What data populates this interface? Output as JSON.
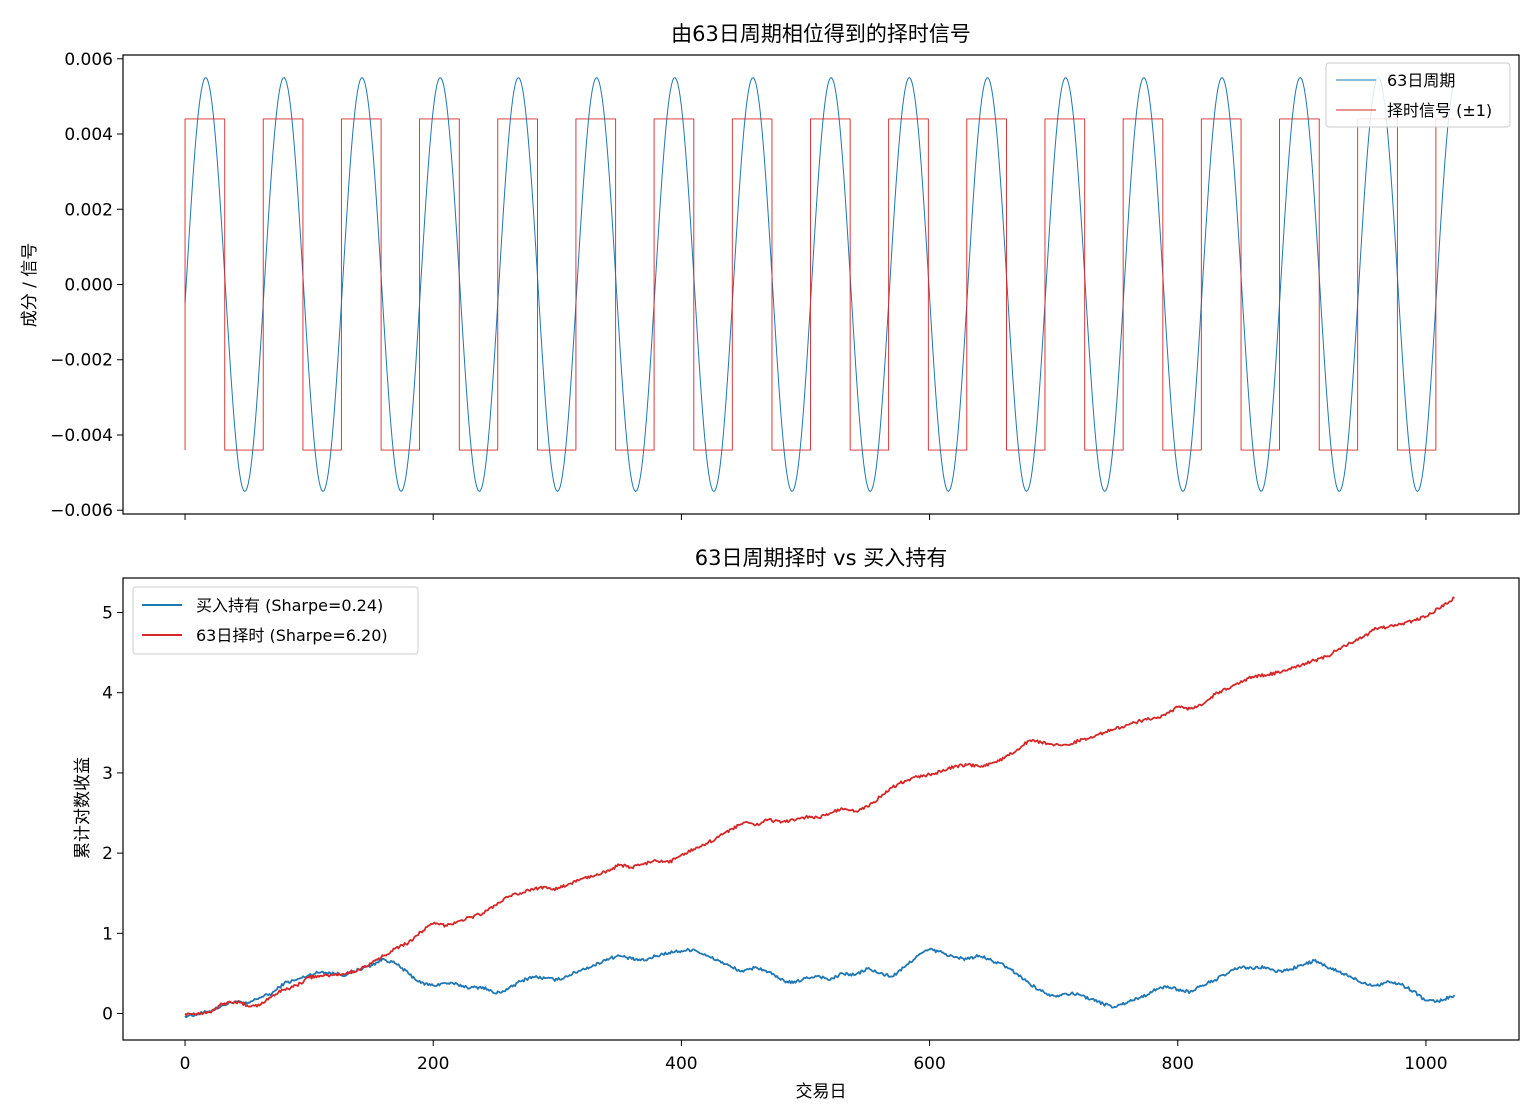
{
  "chart_data": [
    {
      "type": "line",
      "title": "由63日周期相位得到的择时信号",
      "xlabel": "",
      "ylabel": "成分 / 信号",
      "xlim": [
        -50,
        1075
      ],
      "ylim": [
        -0.0061,
        0.0061
      ],
      "xticks": [
        0,
        200,
        400,
        600,
        800,
        1000
      ],
      "show_xtick_labels": false,
      "yticks": [
        -0.006,
        -0.004,
        -0.002,
        0.0,
        0.002,
        0.004,
        0.006
      ],
      "ytick_labels": [
        "−0.006",
        "−0.004",
        "−0.002",
        "0.000",
        "0.002",
        "0.004",
        "0.006"
      ],
      "grid": false,
      "legend_position": "upper right",
      "series": [
        {
          "name": "63日周期",
          "color": "#1f77b4",
          "kind": "sine",
          "amplitude": 0.0055,
          "period": 63,
          "n": 1024,
          "start_value": -0.0005
        },
        {
          "name": "择时信号 (±1)",
          "color": "#d62728",
          "kind": "step",
          "level": 0.0044,
          "first_value": -0.0044,
          "switch_x": [
            0,
            32,
            63,
            95,
            126,
            158,
            189,
            221,
            252,
            284,
            315,
            347,
            378,
            410,
            441,
            473,
            504,
            536,
            567,
            599,
            630,
            662,
            693,
            725,
            756,
            788,
            819,
            851,
            882,
            914,
            945,
            977,
            1008
          ],
          "end_x": 1023
        }
      ]
    },
    {
      "type": "line",
      "title": "63日周期择时 vs 买入持有",
      "xlabel": "交易日",
      "ylabel": "累计对数收益",
      "xlim": [
        -50,
        1075
      ],
      "ylim": [
        -0.33,
        5.43
      ],
      "xticks": [
        0,
        200,
        400,
        600,
        800,
        1000
      ],
      "yticks": [
        0,
        1,
        2,
        3,
        4,
        5
      ],
      "grid": false,
      "legend_position": "upper left",
      "series": [
        {
          "name": "买入持有 (Sharpe=0.24)",
          "color": "#1f77b4",
          "x": [
            0,
            10,
            20,
            30,
            40,
            50,
            60,
            70,
            80,
            90,
            100,
            110,
            120,
            130,
            140,
            150,
            160,
            170,
            180,
            190,
            200,
            210,
            220,
            230,
            240,
            250,
            260,
            270,
            280,
            290,
            300,
            310,
            320,
            330,
            340,
            350,
            360,
            370,
            380,
            390,
            400,
            410,
            420,
            430,
            440,
            450,
            460,
            470,
            480,
            490,
            500,
            510,
            520,
            530,
            540,
            550,
            560,
            570,
            580,
            590,
            600,
            610,
            620,
            630,
            640,
            650,
            660,
            670,
            680,
            690,
            700,
            710,
            720,
            730,
            740,
            750,
            760,
            770,
            780,
            790,
            800,
            810,
            820,
            830,
            840,
            850,
            860,
            870,
            880,
            890,
            900,
            910,
            920,
            930,
            940,
            950,
            960,
            970,
            980,
            990,
            1000,
            1010,
            1023
          ],
          "y": [
            -0.03,
            -0.01,
            0.03,
            0.1,
            0.15,
            0.12,
            0.2,
            0.25,
            0.38,
            0.42,
            0.48,
            0.52,
            0.5,
            0.48,
            0.55,
            0.6,
            0.68,
            0.62,
            0.5,
            0.38,
            0.35,
            0.38,
            0.36,
            0.32,
            0.33,
            0.25,
            0.3,
            0.4,
            0.46,
            0.44,
            0.42,
            0.48,
            0.55,
            0.6,
            0.68,
            0.72,
            0.68,
            0.66,
            0.72,
            0.76,
            0.78,
            0.8,
            0.72,
            0.66,
            0.58,
            0.52,
            0.58,
            0.52,
            0.42,
            0.38,
            0.44,
            0.47,
            0.42,
            0.5,
            0.48,
            0.56,
            0.5,
            0.46,
            0.58,
            0.72,
            0.8,
            0.76,
            0.7,
            0.68,
            0.72,
            0.66,
            0.6,
            0.5,
            0.38,
            0.28,
            0.22,
            0.25,
            0.24,
            0.18,
            0.12,
            0.08,
            0.15,
            0.2,
            0.28,
            0.34,
            0.3,
            0.27,
            0.35,
            0.42,
            0.5,
            0.58,
            0.56,
            0.58,
            0.52,
            0.55,
            0.6,
            0.66,
            0.58,
            0.52,
            0.45,
            0.38,
            0.35,
            0.4,
            0.36,
            0.28,
            0.16,
            0.15,
            0.23
          ]
        },
        {
          "name": "63日择时 (Sharpe=6.20)",
          "color": "#d62728",
          "x": [
            0,
            10,
            20,
            30,
            40,
            50,
            60,
            70,
            80,
            90,
            100,
            110,
            120,
            130,
            140,
            150,
            160,
            170,
            180,
            190,
            200,
            210,
            220,
            230,
            240,
            250,
            260,
            270,
            280,
            290,
            300,
            310,
            320,
            330,
            340,
            350,
            360,
            370,
            380,
            390,
            400,
            410,
            420,
            430,
            440,
            450,
            460,
            470,
            480,
            490,
            500,
            510,
            520,
            530,
            540,
            550,
            560,
            570,
            580,
            590,
            600,
            610,
            620,
            630,
            640,
            650,
            660,
            670,
            680,
            690,
            700,
            710,
            720,
            730,
            740,
            750,
            760,
            770,
            780,
            790,
            800,
            810,
            820,
            830,
            840,
            850,
            860,
            870,
            880,
            890,
            900,
            910,
            920,
            930,
            940,
            950,
            960,
            970,
            980,
            990,
            1000,
            1010,
            1023
          ],
          "y": [
            0.0,
            0.0,
            0.02,
            0.12,
            0.15,
            0.1,
            0.1,
            0.22,
            0.3,
            0.35,
            0.45,
            0.47,
            0.48,
            0.5,
            0.55,
            0.62,
            0.72,
            0.82,
            0.88,
            1.02,
            1.12,
            1.1,
            1.15,
            1.2,
            1.25,
            1.35,
            1.45,
            1.5,
            1.55,
            1.58,
            1.55,
            1.62,
            1.68,
            1.72,
            1.78,
            1.85,
            1.82,
            1.87,
            1.9,
            1.88,
            1.98,
            2.05,
            2.12,
            2.2,
            2.3,
            2.38,
            2.35,
            2.42,
            2.38,
            2.42,
            2.45,
            2.44,
            2.5,
            2.55,
            2.52,
            2.58,
            2.7,
            2.82,
            2.9,
            2.95,
            2.98,
            3.02,
            3.08,
            3.1,
            3.08,
            3.12,
            3.18,
            3.28,
            3.4,
            3.38,
            3.34,
            3.35,
            3.4,
            3.45,
            3.5,
            3.55,
            3.6,
            3.65,
            3.68,
            3.72,
            3.82,
            3.8,
            3.85,
            3.98,
            4.05,
            4.12,
            4.2,
            4.22,
            4.25,
            4.3,
            4.35,
            4.4,
            4.45,
            4.55,
            4.62,
            4.7,
            4.8,
            4.82,
            4.85,
            4.9,
            4.95,
            5.05,
            5.18
          ]
        }
      ]
    }
  ]
}
